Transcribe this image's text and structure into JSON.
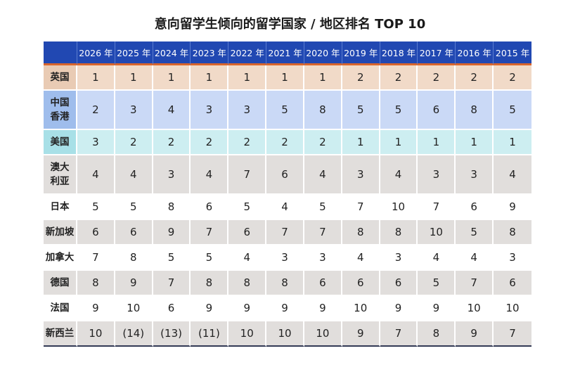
{
  "title": "意向留学生倾向的留学国家 / 地区排名 TOP 10",
  "colors": {
    "header": "#2148b2",
    "header_underline": "#d9652c",
    "uk_row": "#f1dac8",
    "uk_label": "#e9cbb4",
    "hk_row": "#cad9f6",
    "hk_label": "#9fbdec",
    "us_row": "#cdeef1",
    "us_label": "#a8e0e7",
    "gray_row": "#e1dedc",
    "white_row": "#ffffff"
  },
  "chart_data": {
    "type": "table",
    "title": "意向留学生倾向的留学国家 / 地区排名 TOP 10",
    "columns": [
      "",
      "2026 年",
      "2025 年",
      "2024 年",
      "2023 年",
      "2022 年",
      "2021 年",
      "2020 年",
      "2019 年",
      "2018 年",
      "2017 年",
      "2016 年",
      "2015 年"
    ],
    "rows": [
      {
        "label": "英国",
        "values": [
          "1",
          "1",
          "1",
          "1",
          "1",
          "1",
          "1",
          "2",
          "2",
          "2",
          "2",
          "2"
        ],
        "style": "uk",
        "tall": false
      },
      {
        "label": "中国\n香港",
        "values": [
          "2",
          "3",
          "4",
          "3",
          "3",
          "5",
          "8",
          "5",
          "5",
          "6",
          "8",
          "5"
        ],
        "style": "hk",
        "tall": true
      },
      {
        "label": "美国",
        "values": [
          "3",
          "2",
          "2",
          "2",
          "2",
          "2",
          "2",
          "1",
          "1",
          "1",
          "1",
          "1"
        ],
        "style": "us",
        "tall": false
      },
      {
        "label": "澳大\n利亚",
        "values": [
          "4",
          "4",
          "3",
          "4",
          "7",
          "6",
          "4",
          "3",
          "4",
          "3",
          "3",
          "4"
        ],
        "style": "gray",
        "tall": true
      },
      {
        "label": "日本",
        "values": [
          "5",
          "5",
          "8",
          "6",
          "5",
          "4",
          "5",
          "7",
          "10",
          "7",
          "6",
          "9"
        ],
        "style": "white",
        "tall": false
      },
      {
        "label": "新加坡",
        "values": [
          "6",
          "6",
          "9",
          "7",
          "6",
          "7",
          "7",
          "8",
          "8",
          "10",
          "5",
          "8"
        ],
        "style": "gray",
        "tall": false
      },
      {
        "label": "加拿大",
        "values": [
          "7",
          "8",
          "5",
          "5",
          "4",
          "3",
          "3",
          "4",
          "3",
          "4",
          "4",
          "3"
        ],
        "style": "white",
        "tall": false
      },
      {
        "label": "德国",
        "values": [
          "8",
          "9",
          "7",
          "8",
          "8",
          "8",
          "6",
          "6",
          "6",
          "5",
          "7",
          "6"
        ],
        "style": "gray",
        "tall": false
      },
      {
        "label": "法国",
        "values": [
          "9",
          "10",
          "6",
          "9",
          "9",
          "9",
          "9",
          "10",
          "9",
          "9",
          "10",
          "10"
        ],
        "style": "white",
        "tall": false
      },
      {
        "label": "新西兰",
        "values": [
          "10",
          "(14)",
          "(13)",
          "(11)",
          "10",
          "10",
          "10",
          "9",
          "7",
          "8",
          "9",
          "7"
        ],
        "style": "gray",
        "tall": false
      }
    ]
  }
}
